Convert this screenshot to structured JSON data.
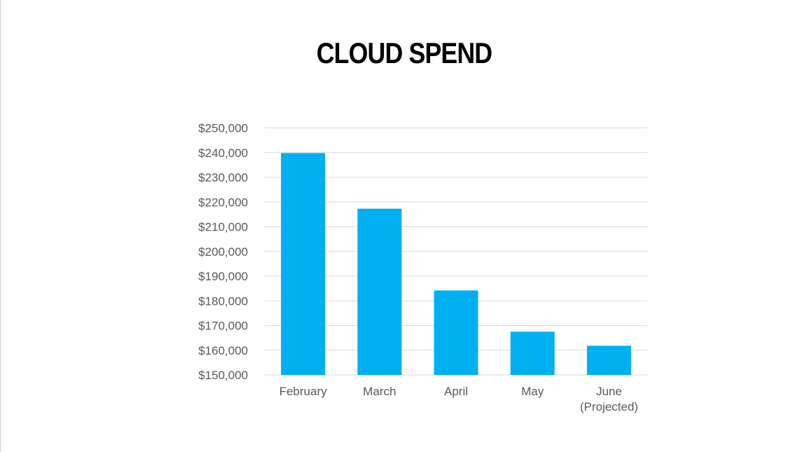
{
  "chart_data": {
    "type": "bar",
    "title": "CLOUD SPEND",
    "xlabel": "",
    "ylabel": "",
    "categories": [
      [
        "February"
      ],
      [
        "March"
      ],
      [
        "April"
      ],
      [
        "May"
      ],
      [
        "June",
        "(Projected)"
      ]
    ],
    "values": [
      239800,
      217300,
      184200,
      167500,
      161800
    ],
    "ylim": [
      150000,
      250000
    ],
    "yticks": [
      150000,
      160000,
      170000,
      180000,
      190000,
      200000,
      210000,
      220000,
      230000,
      240000,
      250000
    ],
    "ytick_labels": [
      "$150,000",
      "$160,000",
      "$170,000",
      "$180,000",
      "$190,000",
      "$200,000",
      "$210,000",
      "$220,000",
      "$230,000",
      "$240,000",
      "$250,000"
    ],
    "grid": true,
    "legend": "none",
    "bar_color": "#00B0F0",
    "grid_color": "#D9D9D9"
  }
}
